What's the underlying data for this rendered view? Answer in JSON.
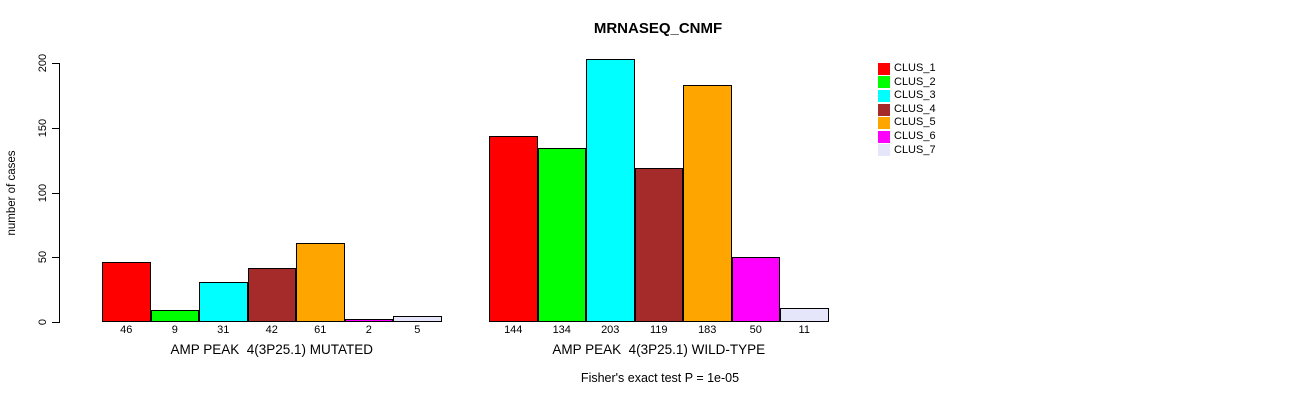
{
  "chart_data": {
    "type": "bar",
    "title": "MRNASEQ_CNMF",
    "ylabel": "number of cases",
    "yticks": [
      0,
      50,
      100,
      150,
      200
    ],
    "ylim": [
      0,
      210
    ],
    "grid": false,
    "legend_position": "right",
    "legend": [
      {
        "label": "CLUS_1",
        "color": "#FF0000"
      },
      {
        "label": "CLUS_2",
        "color": "#00FF00"
      },
      {
        "label": "CLUS_3",
        "color": "#00FFFF"
      },
      {
        "label": "CLUS_4",
        "color": "#A52A2A"
      },
      {
        "label": "CLUS_5",
        "color": "#FFA500"
      },
      {
        "label": "CLUS_6",
        "color": "#FF00FF"
      },
      {
        "label": "CLUS_7",
        "color": "#E6E6FA"
      }
    ],
    "groups": [
      {
        "label": "AMP PEAK  4(3P25.1) MUTATED",
        "values": [
          46,
          9,
          31,
          42,
          61,
          2,
          5
        ]
      },
      {
        "label": "AMP PEAK  4(3P25.1) WILD-TYPE",
        "values": [
          144,
          134,
          203,
          119,
          183,
          50,
          11
        ]
      }
    ],
    "bar_value_labels": true,
    "annotation": "Fisher's exact test P = 1e-05"
  }
}
